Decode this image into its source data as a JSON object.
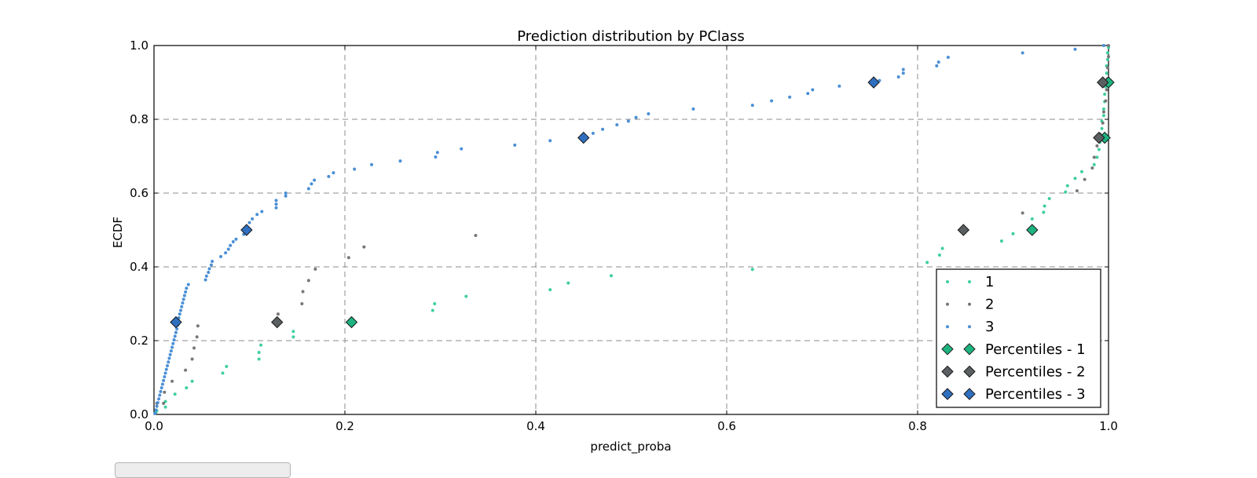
{
  "chart_data": {
    "type": "scatter",
    "title": "Prediction distribution by PClass",
    "xlabel": "predict_proba",
    "ylabel": "ECDF",
    "xlim": [
      0,
      1
    ],
    "ylim": [
      0,
      1
    ],
    "xticks": [
      "0.0",
      "0.2",
      "0.4",
      "0.6",
      "0.8",
      "1.0"
    ],
    "yticks": [
      "0.0",
      "0.2",
      "0.4",
      "0.6",
      "0.8",
      "1.0"
    ],
    "grid": true,
    "legend_position": "lower-right",
    "series": [
      {
        "name": "1",
        "kind": "points",
        "color": "#3ecf9e",
        "points": [
          [
            0.002,
            0.005
          ],
          [
            0.003,
            0.01
          ],
          [
            0.012,
            0.02
          ],
          [
            0.012,
            0.035
          ],
          [
            0.022,
            0.055
          ],
          [
            0.034,
            0.072
          ],
          [
            0.04,
            0.09
          ],
          [
            0.072,
            0.112
          ],
          [
            0.076,
            0.13
          ],
          [
            0.11,
            0.15
          ],
          [
            0.11,
            0.168
          ],
          [
            0.112,
            0.188
          ],
          [
            0.146,
            0.21
          ],
          [
            0.146,
            0.225
          ],
          [
            0.292,
            0.282
          ],
          [
            0.294,
            0.3
          ],
          [
            0.327,
            0.32
          ],
          [
            0.415,
            0.338
          ],
          [
            0.434,
            0.356
          ],
          [
            0.479,
            0.376
          ],
          [
            0.627,
            0.393
          ],
          [
            0.81,
            0.412
          ],
          [
            0.823,
            0.432
          ],
          [
            0.826,
            0.45
          ],
          [
            0.888,
            0.47
          ],
          [
            0.9,
            0.49
          ],
          [
            0.92,
            0.53
          ],
          [
            0.932,
            0.548
          ],
          [
            0.933,
            0.565
          ],
          [
            0.938,
            0.585
          ],
          [
            0.955,
            0.603
          ],
          [
            0.957,
            0.62
          ],
          [
            0.965,
            0.64
          ],
          [
            0.972,
            0.658
          ],
          [
            0.985,
            0.677
          ],
          [
            0.988,
            0.697
          ],
          [
            0.99,
            0.718
          ],
          [
            0.991,
            0.738
          ],
          [
            0.992,
            0.757
          ],
          [
            0.993,
            0.775
          ],
          [
            0.993,
            0.795
          ],
          [
            0.995,
            0.81
          ],
          [
            0.995,
            0.828
          ],
          [
            0.996,
            0.848
          ],
          [
            0.996,
            0.868
          ],
          [
            0.997,
            0.888
          ],
          [
            0.997,
            0.905
          ],
          [
            0.998,
            0.925
          ],
          [
            0.998,
            0.945
          ],
          [
            0.999,
            0.962
          ],
          [
            0.999,
            0.98
          ],
          [
            1.0,
            0.995
          ]
        ]
      },
      {
        "name": "2",
        "kind": "points",
        "color": "#777777",
        "points": [
          [
            0.003,
            0.03
          ],
          [
            0.01,
            0.03
          ],
          [
            0.011,
            0.06
          ],
          [
            0.019,
            0.09
          ],
          [
            0.033,
            0.12
          ],
          [
            0.04,
            0.15
          ],
          [
            0.042,
            0.18
          ],
          [
            0.045,
            0.21
          ],
          [
            0.046,
            0.24
          ],
          [
            0.13,
            0.272
          ],
          [
            0.155,
            0.3
          ],
          [
            0.156,
            0.333
          ],
          [
            0.162,
            0.363
          ],
          [
            0.169,
            0.394
          ],
          [
            0.204,
            0.425
          ],
          [
            0.22,
            0.454
          ],
          [
            0.337,
            0.485
          ],
          [
            0.91,
            0.546
          ],
          [
            0.967,
            0.606
          ],
          [
            0.975,
            0.637
          ],
          [
            0.983,
            0.668
          ],
          [
            0.985,
            0.697
          ],
          [
            0.988,
            0.728
          ],
          [
            0.991,
            0.76
          ],
          [
            0.994,
            0.79
          ],
          [
            0.995,
            0.82
          ],
          [
            0.997,
            0.85
          ],
          [
            0.998,
            0.88
          ],
          [
            0.999,
            0.91
          ],
          [
            0.999,
            0.94
          ],
          [
            1.0,
            0.97
          ],
          [
            1.0,
            1.0
          ]
        ]
      },
      {
        "name": "3",
        "kind": "points",
        "color": "#4a8fd6",
        "points": [
          [
            0.001,
            0.003
          ],
          [
            0.002,
            0.012
          ],
          [
            0.003,
            0.022
          ],
          [
            0.004,
            0.032
          ],
          [
            0.005,
            0.042
          ],
          [
            0.006,
            0.052
          ],
          [
            0.007,
            0.062
          ],
          [
            0.008,
            0.072
          ],
          [
            0.009,
            0.082
          ],
          [
            0.01,
            0.092
          ],
          [
            0.011,
            0.102
          ],
          [
            0.012,
            0.112
          ],
          [
            0.013,
            0.122
          ],
          [
            0.014,
            0.132
          ],
          [
            0.015,
            0.142
          ],
          [
            0.016,
            0.152
          ],
          [
            0.017,
            0.162
          ],
          [
            0.018,
            0.172
          ],
          [
            0.019,
            0.182
          ],
          [
            0.02,
            0.192
          ],
          [
            0.021,
            0.202
          ],
          [
            0.022,
            0.212
          ],
          [
            0.023,
            0.222
          ],
          [
            0.024,
            0.232
          ],
          [
            0.025,
            0.242
          ],
          [
            0.026,
            0.262
          ],
          [
            0.027,
            0.272
          ],
          [
            0.028,
            0.282
          ],
          [
            0.029,
            0.292
          ],
          [
            0.03,
            0.302
          ],
          [
            0.031,
            0.312
          ],
          [
            0.032,
            0.322
          ],
          [
            0.033,
            0.332
          ],
          [
            0.034,
            0.342
          ],
          [
            0.036,
            0.352
          ],
          [
            0.054,
            0.365
          ],
          [
            0.055,
            0.375
          ],
          [
            0.057,
            0.385
          ],
          [
            0.058,
            0.395
          ],
          [
            0.06,
            0.405
          ],
          [
            0.061,
            0.415
          ],
          [
            0.07,
            0.428
          ],
          [
            0.075,
            0.438
          ],
          [
            0.078,
            0.448
          ],
          [
            0.08,
            0.458
          ],
          [
            0.083,
            0.468
          ],
          [
            0.086,
            0.475
          ],
          [
            0.094,
            0.488
          ],
          [
            0.1,
            0.52
          ],
          [
            0.103,
            0.53
          ],
          [
            0.108,
            0.542
          ],
          [
            0.113,
            0.55
          ],
          [
            0.128,
            0.56
          ],
          [
            0.128,
            0.57
          ],
          [
            0.128,
            0.58
          ],
          [
            0.138,
            0.592
          ],
          [
            0.138,
            0.6
          ],
          [
            0.162,
            0.612
          ],
          [
            0.165,
            0.625
          ],
          [
            0.168,
            0.635
          ],
          [
            0.183,
            0.645
          ],
          [
            0.188,
            0.655
          ],
          [
            0.21,
            0.665
          ],
          [
            0.228,
            0.677
          ],
          [
            0.258,
            0.687
          ],
          [
            0.295,
            0.698
          ],
          [
            0.297,
            0.71
          ],
          [
            0.322,
            0.72
          ],
          [
            0.378,
            0.73
          ],
          [
            0.415,
            0.742
          ],
          [
            0.46,
            0.762
          ],
          [
            0.47,
            0.773
          ],
          [
            0.485,
            0.785
          ],
          [
            0.497,
            0.795
          ],
          [
            0.505,
            0.805
          ],
          [
            0.518,
            0.815
          ],
          [
            0.565,
            0.828
          ],
          [
            0.627,
            0.838
          ],
          [
            0.647,
            0.85
          ],
          [
            0.666,
            0.86
          ],
          [
            0.685,
            0.87
          ],
          [
            0.69,
            0.88
          ],
          [
            0.718,
            0.89
          ],
          [
            0.76,
            0.905
          ],
          [
            0.78,
            0.915
          ],
          [
            0.785,
            0.925
          ],
          [
            0.785,
            0.935
          ],
          [
            0.82,
            0.945
          ],
          [
            0.822,
            0.955
          ],
          [
            0.832,
            0.968
          ],
          [
            0.91,
            0.98
          ],
          [
            0.965,
            0.99
          ],
          [
            0.995,
            1.0
          ]
        ]
      },
      {
        "name": "Percentiles - 1",
        "kind": "diamonds",
        "color": "#1db37f",
        "points": [
          [
            0.207,
            0.25
          ],
          [
            0.92,
            0.5
          ],
          [
            0.996,
            0.75
          ],
          [
            1.0,
            0.9
          ]
        ]
      },
      {
        "name": "Percentiles - 2",
        "kind": "diamonds",
        "color": "#5a5f62",
        "points": [
          [
            0.129,
            0.25
          ],
          [
            0.848,
            0.5
          ],
          [
            0.99,
            0.75
          ],
          [
            0.994,
            0.9
          ]
        ]
      },
      {
        "name": "Percentiles - 3",
        "kind": "diamonds",
        "color": "#2f6fbf",
        "points": [
          [
            0.023,
            0.25
          ],
          [
            0.097,
            0.5
          ],
          [
            0.45,
            0.75
          ],
          [
            0.754,
            0.9
          ]
        ]
      }
    ]
  }
}
